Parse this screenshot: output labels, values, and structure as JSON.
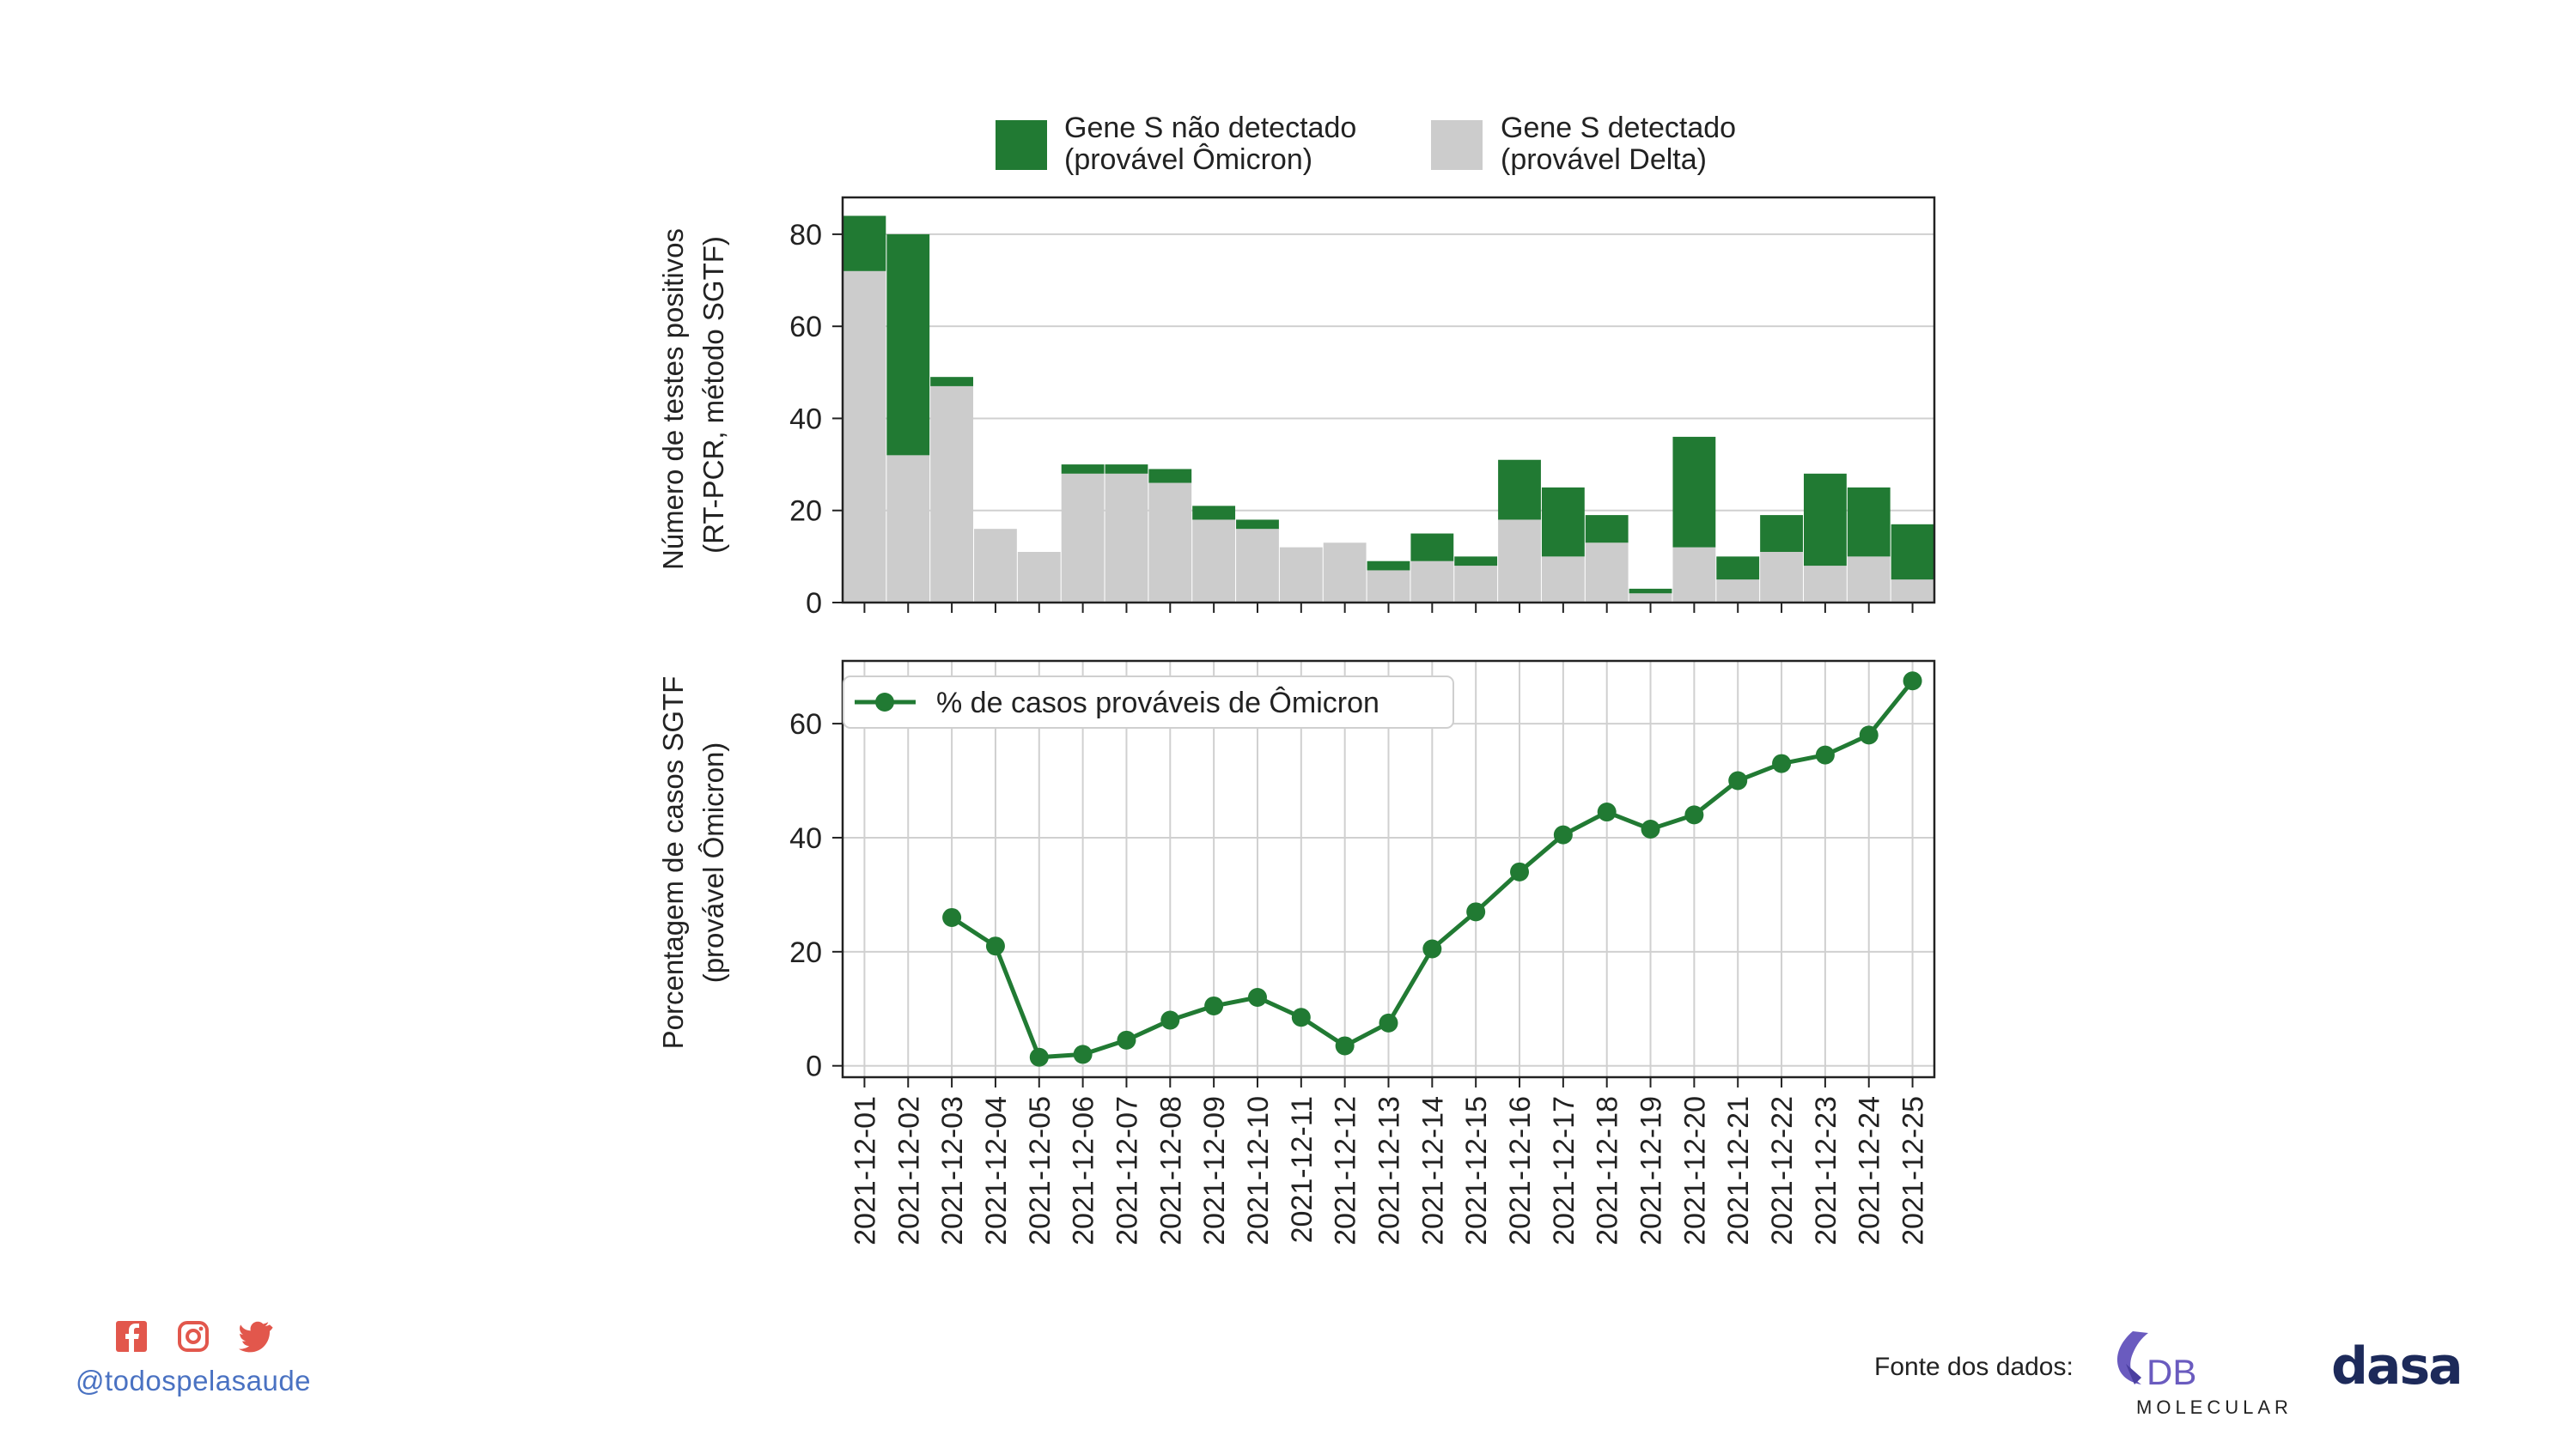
{
  "colors": {
    "omicron": "#217a33",
    "delta": "#cccccc",
    "line": "#217a33",
    "social": "#e2574c",
    "handle": "#4a72c2",
    "brand_db": "#6a5bbf",
    "brand_dasa": "#1d2a5a"
  },
  "chart_data": [
    {
      "type": "bar",
      "stacked": true,
      "categories": [
        "2021-12-01",
        "2021-12-02",
        "2021-12-03",
        "2021-12-04",
        "2021-12-05",
        "2021-12-06",
        "2021-12-07",
        "2021-12-08",
        "2021-12-09",
        "2021-12-10",
        "2021-12-11",
        "2021-12-12",
        "2021-12-13",
        "2021-12-14",
        "2021-12-15",
        "2021-12-16",
        "2021-12-17",
        "2021-12-18",
        "2021-12-19",
        "2021-12-20",
        "2021-12-21",
        "2021-12-22",
        "2021-12-23",
        "2021-12-24",
        "2021-12-25"
      ],
      "series": [
        {
          "name": "Gene S detectado\n(provável Delta)",
          "values": [
            72,
            32,
            47,
            16,
            11,
            28,
            28,
            26,
            18,
            16,
            12,
            13,
            7,
            9,
            8,
            18,
            10,
            13,
            2,
            12,
            5,
            11,
            8,
            10,
            5
          ]
        },
        {
          "name": "Gene S não detectado\n(provável Ômicron)",
          "values": [
            12,
            48,
            2,
            0,
            0,
            2,
            2,
            3,
            3,
            2,
            0,
            0,
            2,
            6,
            2,
            13,
            15,
            6,
            1,
            24,
            5,
            8,
            20,
            15,
            12
          ]
        }
      ],
      "legend_items": [
        {
          "line1": "Gene S não detectado",
          "line2": "(provável Ômicron)"
        },
        {
          "line1": "Gene S detectado",
          "line2": "(provável Delta)"
        }
      ],
      "ylabel_line1": "Número de testes positivos",
      "ylabel_line2": "(RT-PCR, método SGTF)",
      "ylim": [
        0,
        88
      ],
      "yticks": [
        0,
        20,
        40,
        60,
        80
      ],
      "legend_position": "top-center",
      "grid": "horizontal"
    },
    {
      "type": "line",
      "categories": [
        "2021-12-01",
        "2021-12-02",
        "2021-12-03",
        "2021-12-04",
        "2021-12-05",
        "2021-12-06",
        "2021-12-07",
        "2021-12-08",
        "2021-12-09",
        "2021-12-10",
        "2021-12-11",
        "2021-12-12",
        "2021-12-13",
        "2021-12-14",
        "2021-12-15",
        "2021-12-16",
        "2021-12-17",
        "2021-12-18",
        "2021-12-19",
        "2021-12-20",
        "2021-12-21",
        "2021-12-22",
        "2021-12-23",
        "2021-12-24",
        "2021-12-25"
      ],
      "series": [
        {
          "name": "% de casos prováveis de Ômicron",
          "values": [
            null,
            null,
            26,
            21,
            1.5,
            2,
            4.5,
            8,
            10.5,
            12,
            8.5,
            3.5,
            7.5,
            20.5,
            27,
            34,
            40.5,
            44.5,
            41.5,
            44,
            50,
            53,
            54.5,
            58,
            67.5
          ]
        }
      ],
      "ylabel_line1": "Porcentagem de casos SGTF",
      "ylabel_line2": "(provável Ômicron)",
      "ylim": [
        -2,
        71
      ],
      "yticks": [
        0,
        20,
        40,
        60
      ],
      "legend_position": "top-left",
      "grid": "both"
    }
  ],
  "footer": {
    "social_icons": [
      "facebook-icon",
      "instagram-icon",
      "twitter-icon"
    ],
    "handle": "@todospelasaude",
    "fonte_label": "Fonte dos dados:",
    "db_logo_text": "DB",
    "db_logo_sub": "MOLECULAR",
    "dasa_logo_text": "dasa"
  }
}
